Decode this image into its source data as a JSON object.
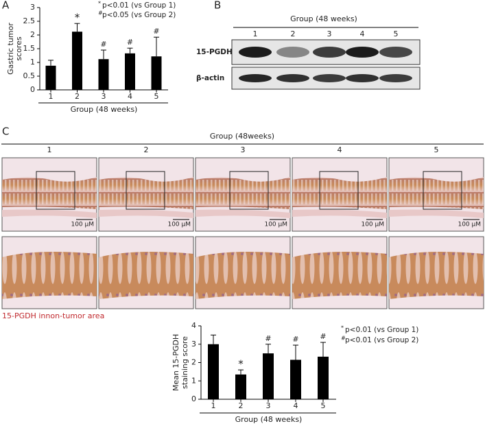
{
  "panels": {
    "a": "A",
    "b": "B",
    "c": "C"
  },
  "chart_data": [
    {
      "type": "bar",
      "categories": [
        "1",
        "2",
        "3",
        "4",
        "5"
      ],
      "values": [
        0.88,
        2.12,
        1.12,
        1.33,
        1.22
      ],
      "errors": [
        0.2,
        0.3,
        0.33,
        0.19,
        0.7
      ],
      "annotations": [
        null,
        "*",
        "#",
        "#",
        "#"
      ],
      "color": "#000000",
      "ylabel": [
        "Gastric tumor",
        "scores"
      ],
      "xlabel": "Group (48 weeks)",
      "ylim": [
        0,
        3
      ],
      "yticks": [
        0,
        0.5,
        1,
        1.5,
        2,
        2.5,
        3
      ],
      "notes": [
        {
          "symbol": "*",
          "text": "p<0.01 (vs Group 1)"
        },
        {
          "symbol": "#",
          "text": "p<0.05 (vs Group 2)"
        }
      ]
    },
    {
      "type": "bar",
      "categories": [
        "1",
        "2",
        "3",
        "4",
        "5"
      ],
      "values": [
        3.0,
        1.35,
        2.5,
        2.15,
        2.32
      ],
      "errors": [
        0.5,
        0.25,
        0.5,
        0.8,
        0.78
      ],
      "annotations": [
        null,
        "*",
        "#",
        "#",
        "#"
      ],
      "color": "#000000",
      "ylabel": [
        "Mean 15-PGDH",
        "staining score"
      ],
      "xlabel": "Group (48 weeks)",
      "ylim": [
        0,
        4
      ],
      "yticks": [
        0,
        1,
        2,
        3,
        4
      ],
      "notes": [
        {
          "symbol": "*",
          "text": "p<0.01 (vs Group 1)"
        },
        {
          "symbol": "#",
          "text": "p<0.01 (vs Group 2)"
        }
      ]
    }
  ],
  "blot": {
    "title": "Group (48 weeks)",
    "lanes": [
      "1",
      "2",
      "3",
      "4",
      "5"
    ],
    "rows": [
      "15-PGDH",
      "β-actin"
    ]
  },
  "histology": {
    "title": "Group (48weeks)",
    "columns": [
      "1",
      "2",
      "3",
      "4",
      "5"
    ],
    "scale_bar": "100 μM",
    "caption": "15-PGDH innon-tumor area"
  }
}
